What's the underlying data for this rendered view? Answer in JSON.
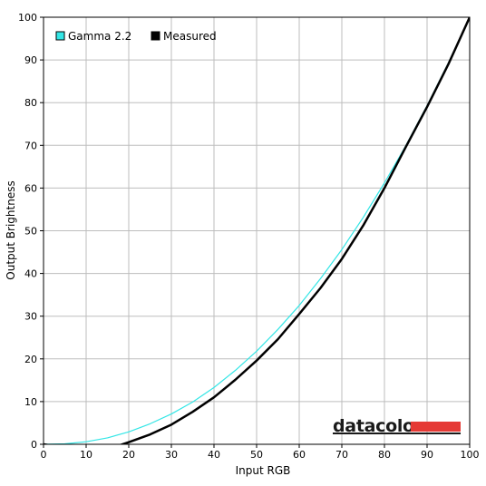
{
  "chart_data": {
    "type": "line",
    "xlabel": "Input RGB",
    "ylabel": "Output Brightness",
    "xlim": [
      0,
      100
    ],
    "ylim": [
      0,
      100
    ],
    "xticks": [
      0,
      10,
      20,
      30,
      40,
      50,
      60,
      70,
      80,
      90,
      100
    ],
    "yticks": [
      0,
      10,
      20,
      30,
      40,
      50,
      60,
      70,
      80,
      90,
      100
    ],
    "grid": true,
    "legend_position": "top-left",
    "series": [
      {
        "name": "Gamma 2.2",
        "color": "#33e6e6",
        "x": [
          0,
          5,
          10,
          15,
          20,
          25,
          30,
          35,
          40,
          45,
          50,
          55,
          60,
          65,
          70,
          75,
          80,
          85,
          90,
          95,
          100
        ],
        "y": [
          0,
          0.1,
          0.6,
          1.5,
          2.9,
          4.8,
          7.1,
          9.9,
          13.3,
          17.3,
          21.8,
          26.9,
          32.5,
          38.8,
          45.6,
          53.1,
          61.2,
          69.9,
          79.3,
          89.3,
          100
        ]
      },
      {
        "name": "Measured",
        "color": "#000000",
        "x": [
          0,
          5,
          10,
          15,
          20,
          25,
          30,
          35,
          40,
          45,
          50,
          55,
          60,
          65,
          70,
          75,
          80,
          85,
          90,
          95,
          100
        ],
        "y": [
          0,
          -0.8,
          -1.4,
          -1.2,
          0.5,
          2.3,
          4.6,
          7.6,
          11.0,
          15.1,
          19.6,
          24.6,
          30.5,
          36.6,
          43.4,
          51.2,
          60.0,
          69.6,
          79.0,
          89.0,
          100
        ]
      }
    ]
  },
  "watermark": {
    "text": "datacolor",
    "bar_color": "#e53935"
  }
}
